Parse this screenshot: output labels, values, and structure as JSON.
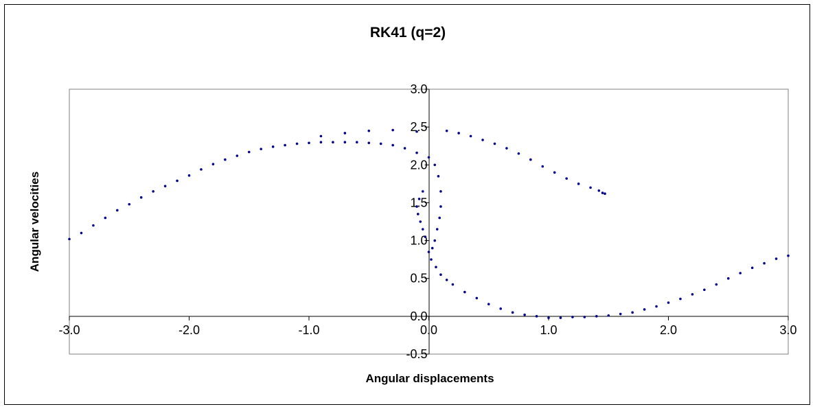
{
  "chart_data": {
    "type": "scatter",
    "title": "RK41 (q=2)",
    "xlabel": "Angular displacements",
    "ylabel": "Angular velocities",
    "xlim": [
      -3.0,
      3.0
    ],
    "ylim": [
      -0.5,
      3.0
    ],
    "x_ticks": [
      "-3.0",
      "-2.0",
      "-1.0",
      "0.0",
      "1.0",
      "2.0",
      "3.0"
    ],
    "y_ticks": [
      "3.0",
      "2.5",
      "2.0",
      "1.5",
      "1.0",
      "0.5",
      "0.0",
      "-0.5"
    ],
    "grid": false,
    "legend": "none",
    "marker_color": "#00008B",
    "series": [
      {
        "x": [
          -3.0,
          -2.9,
          -2.8,
          -2.7,
          -2.6,
          -2.5,
          -2.4,
          -2.3,
          -2.2,
          -2.1,
          -2.0,
          -1.9,
          -1.8,
          -1.7,
          -1.6,
          -1.5,
          -1.4,
          -1.3,
          -1.2,
          -1.1,
          -1.0,
          -0.9,
          -0.8,
          -0.7,
          -0.6,
          -0.5,
          -0.4,
          -0.3,
          -0.2,
          -0.1,
          0.0,
          0.05,
          0.08,
          0.1,
          0.1,
          0.09,
          0.07,
          0.05,
          0.03,
          0.0,
          0.02,
          0.06,
          0.1,
          0.15,
          0.2,
          0.3,
          0.4,
          0.5,
          0.6,
          0.7,
          0.8,
          0.9,
          1.0,
          1.1,
          1.2,
          1.3,
          1.4,
          1.5,
          1.6,
          1.7,
          1.8,
          1.9,
          2.0,
          2.1,
          2.2,
          2.3,
          2.4,
          2.5,
          2.6,
          2.7,
          2.8,
          2.9,
          3.0,
          -0.05,
          -0.08,
          -0.1,
          -0.09,
          -0.07,
          -0.05,
          -0.03,
          -0.1,
          -0.3,
          -0.5,
          -0.7,
          -0.9,
          0.15,
          0.25,
          0.35,
          0.45,
          0.55,
          0.65,
          0.75,
          0.85,
          0.95,
          1.05,
          1.15,
          1.25,
          1.35,
          1.42,
          1.45,
          1.47
        ],
        "y": [
          1.02,
          1.1,
          1.2,
          1.3,
          1.4,
          1.48,
          1.57,
          1.65,
          1.72,
          1.79,
          1.86,
          1.94,
          2.01,
          2.07,
          2.12,
          2.17,
          2.21,
          2.24,
          2.26,
          2.28,
          2.29,
          2.3,
          2.3,
          2.3,
          2.3,
          2.29,
          2.28,
          2.26,
          2.22,
          2.16,
          2.1,
          2.0,
          1.85,
          1.65,
          1.45,
          1.3,
          1.15,
          1.0,
          0.9,
          0.85,
          0.75,
          0.65,
          0.55,
          0.48,
          0.42,
          0.32,
          0.24,
          0.16,
          0.1,
          0.05,
          0.02,
          0.0,
          -0.02,
          -0.02,
          -0.01,
          -0.01,
          0.0,
          0.01,
          0.03,
          0.05,
          0.09,
          0.13,
          0.18,
          0.23,
          0.29,
          0.35,
          0.42,
          0.5,
          0.57,
          0.64,
          0.7,
          0.76,
          0.8,
          1.65,
          1.55,
          1.45,
          1.35,
          1.25,
          1.15,
          1.05,
          2.44,
          2.46,
          2.45,
          2.42,
          2.38,
          2.45,
          2.42,
          2.38,
          2.33,
          2.28,
          2.22,
          2.15,
          2.07,
          1.98,
          1.9,
          1.82,
          1.75,
          1.7,
          1.66,
          1.63,
          1.62
        ]
      }
    ]
  }
}
